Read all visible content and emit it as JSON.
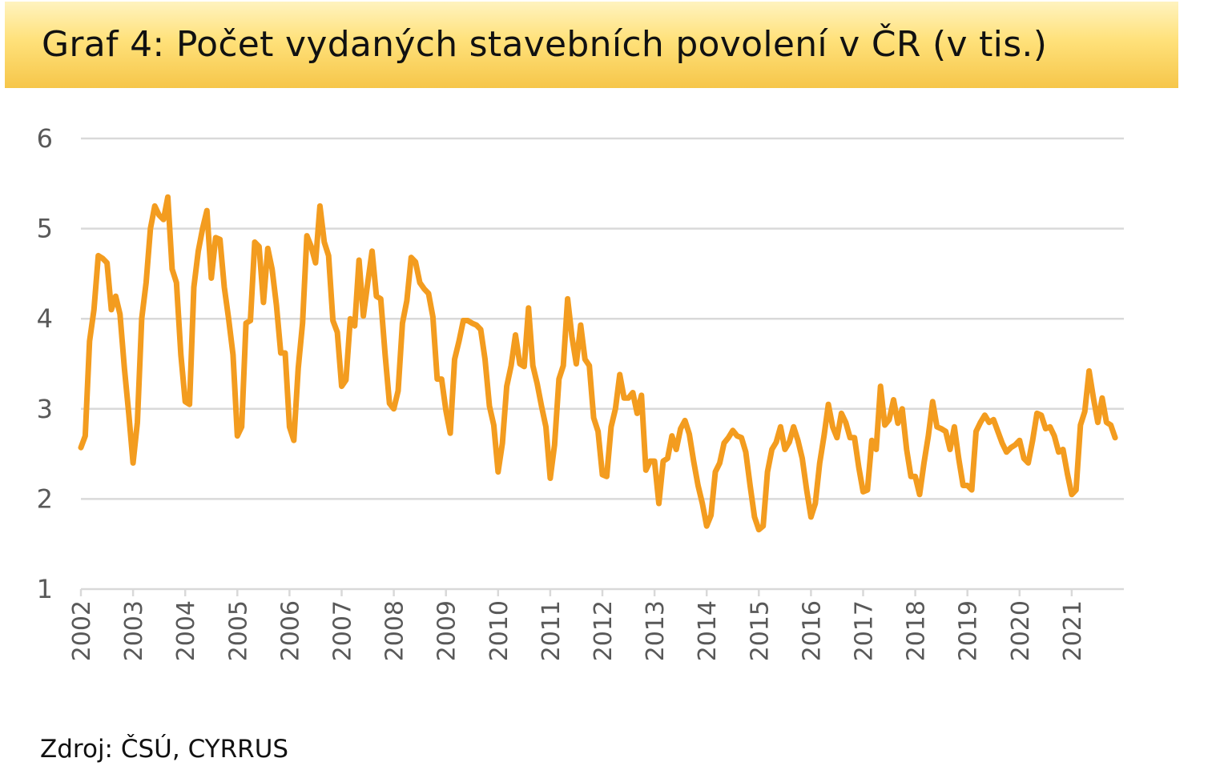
{
  "title": "Graf 4: Počet vydaných stavebních povolení v ČR (v tis.)",
  "source": "Zdroj: ČSÚ, CYRRUS",
  "colors": {
    "series": "#f39c1f",
    "grid": "#d9d9d9",
    "title_bg": "#ffd65c"
  },
  "chart_data": {
    "type": "line",
    "title": "Graf 4: Počet vydaných stavebních povolení v ČR (v tis.)",
    "xlabel": "",
    "ylabel": "",
    "ylim": [
      1,
      6
    ],
    "yticks": [
      "1",
      "2",
      "3",
      "4",
      "5",
      "6"
    ],
    "xticks": [
      "2002",
      "2003",
      "2004",
      "2005",
      "2006",
      "2007",
      "2008",
      "2009",
      "2010",
      "2011",
      "2012",
      "2013",
      "2014",
      "2015",
      "2016",
      "2017",
      "2018",
      "2019",
      "2020",
      "2021"
    ],
    "grid": true,
    "legend": "none",
    "x_start": "2002-01",
    "frequency": "monthly",
    "series": [
      {
        "values": [
          2.57,
          2.7,
          3.75,
          4.1,
          4.7,
          4.67,
          4.62,
          4.1,
          4.25,
          4.05,
          3.45,
          2.95,
          2.4,
          2.85,
          4.0,
          4.4,
          5.0,
          5.25,
          5.15,
          5.1,
          5.35,
          4.55,
          4.4,
          3.6,
          3.08,
          3.05,
          4.35,
          4.75,
          5.0,
          5.2,
          4.45,
          4.9,
          4.88,
          4.35,
          4.0,
          3.6,
          2.7,
          2.8,
          3.95,
          3.98,
          4.85,
          4.8,
          4.18,
          4.78,
          4.55,
          4.15,
          3.62,
          3.62,
          2.8,
          2.65,
          3.45,
          3.95,
          4.92,
          4.8,
          4.62,
          5.25,
          4.85,
          4.7,
          3.98,
          3.85,
          3.25,
          3.32,
          4.0,
          3.92,
          4.65,
          4.03,
          4.4,
          4.75,
          4.25,
          4.22,
          3.6,
          3.06,
          3.0,
          3.2,
          3.95,
          4.2,
          4.68,
          4.63,
          4.4,
          4.33,
          4.28,
          4.02,
          3.33,
          3.33,
          2.98,
          2.73,
          3.55,
          3.75,
          3.98,
          3.98,
          3.95,
          3.93,
          3.88,
          3.55,
          3.03,
          2.82,
          2.3,
          2.62,
          3.25,
          3.48,
          3.82,
          3.5,
          3.47,
          4.12,
          3.48,
          3.28,
          3.03,
          2.8,
          2.23,
          2.6,
          3.33,
          3.48,
          4.22,
          3.8,
          3.5,
          3.93,
          3.55,
          3.48,
          2.9,
          2.75,
          2.27,
          2.25,
          2.8,
          3.0,
          3.38,
          3.12,
          3.12,
          3.18,
          2.95,
          3.15,
          2.32,
          2.42,
          2.42,
          1.95,
          2.42,
          2.45,
          2.7,
          2.55,
          2.78,
          2.87,
          2.72,
          2.42,
          2.15,
          1.95,
          1.7,
          1.82,
          2.3,
          2.4,
          2.62,
          2.68,
          2.76,
          2.7,
          2.68,
          2.52,
          2.15,
          1.8,
          1.66,
          1.7,
          2.3,
          2.55,
          2.63,
          2.8,
          2.55,
          2.63,
          2.8,
          2.65,
          2.45,
          2.1,
          1.8,
          1.95,
          2.4,
          2.7,
          3.05,
          2.8,
          2.68,
          2.95,
          2.85,
          2.68,
          2.68,
          2.35,
          2.08,
          2.1,
          2.65,
          2.55,
          3.25,
          2.82,
          2.88,
          3.1,
          2.84,
          3.0,
          2.55,
          2.25,
          2.25,
          2.05,
          2.4,
          2.7,
          3.08,
          2.8,
          2.78,
          2.75,
          2.55,
          2.8,
          2.45,
          2.15,
          2.15,
          2.1,
          2.75,
          2.85,
          2.93,
          2.85,
          2.88,
          2.75,
          2.62,
          2.52,
          2.57,
          2.6,
          2.65,
          2.45,
          2.4,
          2.65,
          2.95,
          2.93,
          2.78,
          2.8,
          2.7,
          2.52,
          2.55,
          2.28,
          2.05,
          2.1,
          2.82,
          2.97,
          3.42,
          3.12,
          2.85,
          3.12,
          2.85,
          2.82,
          2.68
        ]
      }
    ]
  }
}
